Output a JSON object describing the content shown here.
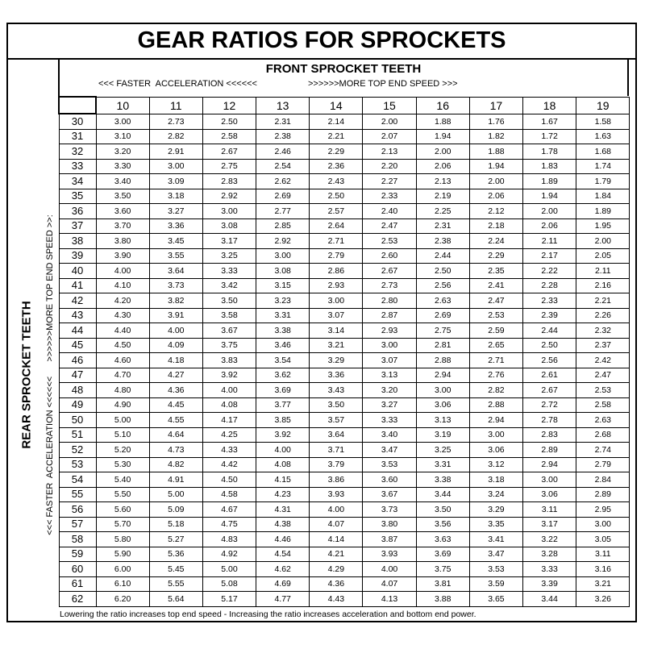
{
  "title": "GEAR RATIOS FOR SPROCKETS",
  "front_header": "FRONT SPROCKET TEETH",
  "front_left_note": "<<< FASTER  ACCELERATION <<<<<<",
  "front_right_note": ">>>>>>MORE TOP END SPEED >>>",
  "rear_header": "REAR SPROCKET TEETH",
  "rear_left_note": "<<< FASTER  ACCELERATION <<<<<<",
  "rear_right_note": ">>>>>>MORE TOP END SPEED >>:",
  "table": {
    "columns": [
      "10",
      "11",
      "12",
      "13",
      "14",
      "15",
      "16",
      "17",
      "18",
      "19"
    ],
    "rows": [
      {
        "label": "30",
        "values": [
          "3.00",
          "2.73",
          "2.50",
          "2.31",
          "2.14",
          "2.00",
          "1.88",
          "1.76",
          "1.67",
          "1.58"
        ]
      },
      {
        "label": "31",
        "values": [
          "3.10",
          "2.82",
          "2.58",
          "2.38",
          "2.21",
          "2.07",
          "1.94",
          "1.82",
          "1.72",
          "1.63"
        ]
      },
      {
        "label": "32",
        "values": [
          "3.20",
          "2.91",
          "2.67",
          "2.46",
          "2.29",
          "2.13",
          "2.00",
          "1.88",
          "1.78",
          "1.68"
        ]
      },
      {
        "label": "33",
        "values": [
          "3.30",
          "3.00",
          "2.75",
          "2.54",
          "2.36",
          "2.20",
          "2.06",
          "1.94",
          "1.83",
          "1.74"
        ]
      },
      {
        "label": "34",
        "values": [
          "3.40",
          "3.09",
          "2.83",
          "2.62",
          "2.43",
          "2.27",
          "2.13",
          "2.00",
          "1.89",
          "1.79"
        ]
      },
      {
        "label": "35",
        "values": [
          "3.50",
          "3.18",
          "2.92",
          "2.69",
          "2.50",
          "2.33",
          "2.19",
          "2.06",
          "1.94",
          "1.84"
        ]
      },
      {
        "label": "36",
        "values": [
          "3.60",
          "3.27",
          "3.00",
          "2.77",
          "2.57",
          "2.40",
          "2.25",
          "2.12",
          "2.00",
          "1.89"
        ]
      },
      {
        "label": "37",
        "values": [
          "3.70",
          "3.36",
          "3.08",
          "2.85",
          "2.64",
          "2.47",
          "2.31",
          "2.18",
          "2.06",
          "1.95"
        ]
      },
      {
        "label": "38",
        "values": [
          "3.80",
          "3.45",
          "3.17",
          "2.92",
          "2.71",
          "2.53",
          "2.38",
          "2.24",
          "2.11",
          "2.00"
        ]
      },
      {
        "label": "39",
        "values": [
          "3.90",
          "3.55",
          "3.25",
          "3.00",
          "2.79",
          "2.60",
          "2.44",
          "2.29",
          "2.17",
          "2.05"
        ]
      },
      {
        "label": "40",
        "values": [
          "4.00",
          "3.64",
          "3.33",
          "3.08",
          "2.86",
          "2.67",
          "2.50",
          "2.35",
          "2.22",
          "2.11"
        ]
      },
      {
        "label": "41",
        "values": [
          "4.10",
          "3.73",
          "3.42",
          "3.15",
          "2.93",
          "2.73",
          "2.56",
          "2.41",
          "2.28",
          "2.16"
        ]
      },
      {
        "label": "42",
        "values": [
          "4.20",
          "3.82",
          "3.50",
          "3.23",
          "3.00",
          "2.80",
          "2.63",
          "2.47",
          "2.33",
          "2.21"
        ]
      },
      {
        "label": "43",
        "values": [
          "4.30",
          "3.91",
          "3.58",
          "3.31",
          "3.07",
          "2.87",
          "2.69",
          "2.53",
          "2.39",
          "2.26"
        ]
      },
      {
        "label": "44",
        "values": [
          "4.40",
          "4.00",
          "3.67",
          "3.38",
          "3.14",
          "2.93",
          "2.75",
          "2.59",
          "2.44",
          "2.32"
        ]
      },
      {
        "label": "45",
        "values": [
          "4.50",
          "4.09",
          "3.75",
          "3.46",
          "3.21",
          "3.00",
          "2.81",
          "2.65",
          "2.50",
          "2.37"
        ]
      },
      {
        "label": "46",
        "values": [
          "4.60",
          "4.18",
          "3.83",
          "3.54",
          "3.29",
          "3.07",
          "2.88",
          "2.71",
          "2.56",
          "2.42"
        ]
      },
      {
        "label": "47",
        "values": [
          "4.70",
          "4.27",
          "3.92",
          "3.62",
          "3.36",
          "3.13",
          "2.94",
          "2.76",
          "2.61",
          "2.47"
        ]
      },
      {
        "label": "48",
        "values": [
          "4.80",
          "4.36",
          "4.00",
          "3.69",
          "3.43",
          "3.20",
          "3.00",
          "2.82",
          "2.67",
          "2.53"
        ]
      },
      {
        "label": "49",
        "values": [
          "4.90",
          "4.45",
          "4.08",
          "3.77",
          "3.50",
          "3.27",
          "3.06",
          "2.88",
          "2.72",
          "2.58"
        ]
      },
      {
        "label": "50",
        "values": [
          "5.00",
          "4.55",
          "4.17",
          "3.85",
          "3.57",
          "3.33",
          "3.13",
          "2.94",
          "2.78",
          "2.63"
        ]
      },
      {
        "label": "51",
        "values": [
          "5.10",
          "4.64",
          "4.25",
          "3.92",
          "3.64",
          "3.40",
          "3.19",
          "3.00",
          "2.83",
          "2.68"
        ]
      },
      {
        "label": "52",
        "values": [
          "5.20",
          "4.73",
          "4.33",
          "4.00",
          "3.71",
          "3.47",
          "3.25",
          "3.06",
          "2.89",
          "2.74"
        ]
      },
      {
        "label": "53",
        "values": [
          "5.30",
          "4.82",
          "4.42",
          "4.08",
          "3.79",
          "3.53",
          "3.31",
          "3.12",
          "2.94",
          "2.79"
        ]
      },
      {
        "label": "54",
        "values": [
          "5.40",
          "4.91",
          "4.50",
          "4.15",
          "3.86",
          "3.60",
          "3.38",
          "3.18",
          "3.00",
          "2.84"
        ]
      },
      {
        "label": "55",
        "values": [
          "5.50",
          "5.00",
          "4.58",
          "4.23",
          "3.93",
          "3.67",
          "3.44",
          "3.24",
          "3.06",
          "2.89"
        ]
      },
      {
        "label": "56",
        "values": [
          "5.60",
          "5.09",
          "4.67",
          "4.31",
          "4.00",
          "3.73",
          "3.50",
          "3.29",
          "3.11",
          "2.95"
        ]
      },
      {
        "label": "57",
        "values": [
          "5.70",
          "5.18",
          "4.75",
          "4.38",
          "4.07",
          "3.80",
          "3.56",
          "3.35",
          "3.17",
          "3.00"
        ]
      },
      {
        "label": "58",
        "values": [
          "5.80",
          "5.27",
          "4.83",
          "4.46",
          "4.14",
          "3.87",
          "3.63",
          "3.41",
          "3.22",
          "3.05"
        ]
      },
      {
        "label": "59",
        "values": [
          "5.90",
          "5.36",
          "4.92",
          "4.54",
          "4.21",
          "3.93",
          "3.69",
          "3.47",
          "3.28",
          "3.11"
        ]
      },
      {
        "label": "60",
        "values": [
          "6.00",
          "5.45",
          "5.00",
          "4.62",
          "4.29",
          "4.00",
          "3.75",
          "3.53",
          "3.33",
          "3.16"
        ]
      },
      {
        "label": "61",
        "values": [
          "6.10",
          "5.55",
          "5.08",
          "4.69",
          "4.36",
          "4.07",
          "3.81",
          "3.59",
          "3.39",
          "3.21"
        ]
      },
      {
        "label": "62",
        "values": [
          "6.20",
          "5.64",
          "5.17",
          "4.77",
          "4.43",
          "4.13",
          "3.88",
          "3.65",
          "3.44",
          "3.26"
        ]
      }
    ]
  },
  "footer": "Lowering the ratio increases top end speed - Increasing the ratio increases acceleration and bottom end power."
}
